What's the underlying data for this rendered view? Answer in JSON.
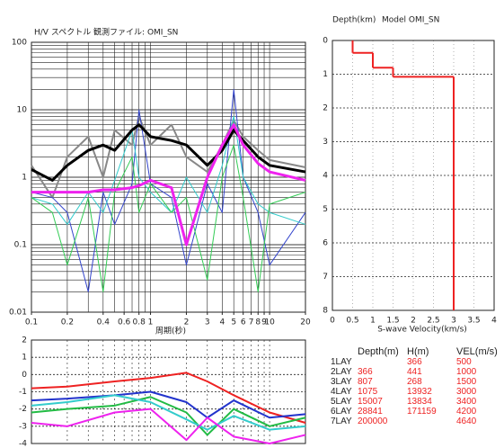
{
  "chart_data": [
    {
      "type": "line",
      "title": "H/V スペクトル 観測ファイル: OMI_SN",
      "x_label": "周期(秒)",
      "xlog": true,
      "ylog": true,
      "xlim": [
        0.1,
        20
      ],
      "ylim": [
        0.01,
        100
      ],
      "xticks": [
        0.1,
        0.2,
        0.4,
        0.6,
        0.8,
        1,
        2,
        3,
        4,
        5,
        6,
        7,
        8,
        9,
        10,
        20
      ],
      "yticks": [
        0.01,
        0.1,
        1,
        10,
        100
      ],
      "x": [
        0.1,
        0.15,
        0.2,
        0.3,
        0.4,
        0.5,
        0.7,
        0.8,
        1,
        1.5,
        2,
        3,
        4,
        5,
        6,
        8,
        10,
        20
      ],
      "series": [
        {
          "color": "#888888",
          "width": 2,
          "values": [
            1.5,
            0.5,
            2,
            4,
            1,
            5,
            3,
            8,
            3,
            6,
            2,
            1.2,
            3,
            7,
            4,
            2.5,
            1.8,
            1.4
          ]
        },
        {
          "color": "#3344cc",
          "width": 1,
          "values": [
            0.6,
            0.5,
            0.3,
            0.02,
            0.6,
            0.2,
            0.8,
            10,
            0.8,
            0.5,
            0.05,
            0.8,
            0.3,
            20,
            1,
            0.3,
            0.05,
            0.3
          ]
        },
        {
          "color": "#33cccc",
          "width": 1,
          "values": [
            0.5,
            0.4,
            0.2,
            0.6,
            0.3,
            0.9,
            5,
            1,
            0.6,
            0.3,
            1,
            0.3,
            1.5,
            8,
            1,
            0.4,
            0.3,
            0.2
          ]
        },
        {
          "color": "#33cc55",
          "width": 1,
          "values": [
            0.5,
            0.3,
            0.05,
            0.5,
            0.02,
            0.6,
            2,
            0.3,
            0.8,
            0.3,
            0.5,
            0.03,
            1,
            3,
            0.5,
            0.02,
            0.4,
            0.6
          ]
        },
        {
          "color": "#000000",
          "width": 3,
          "values": [
            1.3,
            0.9,
            1.5,
            2.5,
            3,
            2.5,
            5,
            6,
            4,
            3.5,
            3,
            1.5,
            2.5,
            5,
            3.5,
            2,
            1.5,
            1.2
          ]
        },
        {
          "color": "#ee22ee",
          "width": 3,
          "values": [
            0.6,
            0.6,
            0.6,
            0.6,
            0.65,
            0.65,
            0.7,
            0.75,
            0.9,
            0.7,
            0.1,
            1,
            3,
            6,
            3,
            1.6,
            1.2,
            0.9
          ]
        }
      ]
    },
    {
      "type": "profile",
      "title": "Depth(km)",
      "subtitle": "Model OMI_SN",
      "x_label": "S-wave Velocity(km/s)",
      "xlim": [
        0,
        4
      ],
      "ylim": [
        0,
        8
      ],
      "xticks": [
        0,
        0.5,
        1,
        1.5,
        2,
        2.5,
        3,
        3.5,
        4
      ],
      "yticks": [
        0,
        1,
        2,
        3,
        4,
        5,
        6,
        7,
        8
      ],
      "color": "#ee2222",
      "depths": [
        0,
        0.366,
        0.807,
        1.075
      ],
      "values": [
        0.5,
        1.0,
        1.5,
        3.0
      ]
    },
    {
      "type": "line",
      "xlog": true,
      "ylog": false,
      "xlim": [
        0.1,
        20
      ],
      "ylim": [
        -4,
        2
      ],
      "yticks": [
        2,
        1,
        0,
        -1,
        -2,
        -3,
        -4
      ],
      "x": [
        0.1,
        0.2,
        0.5,
        1,
        2,
        3,
        5,
        10,
        20
      ],
      "series": [
        {
          "color": "#ee2222",
          "width": 2,
          "values": [
            -0.8,
            -0.7,
            -0.4,
            -0.2,
            0.1,
            -0.4,
            -1.2,
            -2.2,
            -2.8
          ]
        },
        {
          "color": "#2233cc",
          "width": 2,
          "values": [
            -1.5,
            -1.4,
            -1.2,
            -1.0,
            -1.6,
            -2.5,
            -1.5,
            -2.5,
            -2.3
          ]
        },
        {
          "color": "#22bb44",
          "width": 2,
          "values": [
            -2.2,
            -2.0,
            -1.8,
            -1.3,
            -2.2,
            -3.5,
            -2.0,
            -3.0,
            -2.5
          ]
        },
        {
          "color": "#33cccc",
          "width": 2,
          "values": [
            -1.8,
            -1.6,
            -1.2,
            -1.6,
            -2.6,
            -3.2,
            -2.4,
            -3.2,
            -3.0
          ]
        },
        {
          "color": "#ee22ee",
          "width": 2,
          "values": [
            -2.8,
            -3.0,
            -2.2,
            -2.0,
            -3.8,
            -2.5,
            -3.6,
            -4,
            -3.5
          ]
        }
      ]
    }
  ],
  "table": {
    "headers": [
      "Depth(m)",
      "H(m)",
      "VEL(m/s)"
    ],
    "rows": [
      {
        "layer": "1LAY",
        "h": "366",
        "vel": "500"
      },
      {
        "layer": "2LAY",
        "depth": "366",
        "h": "441",
        "vel": "1000"
      },
      {
        "layer": "3LAY",
        "depth": "807",
        "h": "268",
        "vel": "1500"
      },
      {
        "layer": "4LAY",
        "depth": "1075",
        "h": "13932",
        "vel": "3000"
      },
      {
        "layer": "5LAY",
        "depth": "15007",
        "h": "13834",
        "vel": "3400"
      },
      {
        "layer": "6LAY",
        "depth": "28841",
        "h": "171159",
        "vel": "4200"
      },
      {
        "layer": "7LAY",
        "depth": "200000",
        "vel": "4640"
      }
    ]
  }
}
